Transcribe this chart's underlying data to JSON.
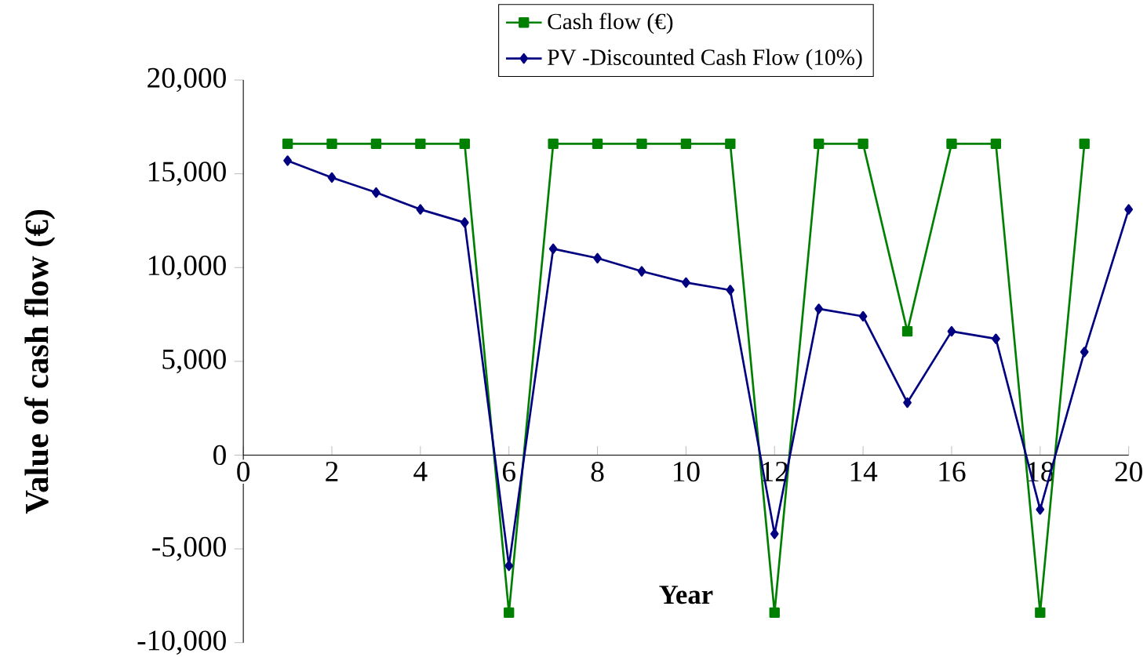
{
  "chart_data": {
    "type": "line",
    "xlabel": "Year",
    "ylabel": "Value of cash flow (€)",
    "x": [
      1,
      2,
      3,
      4,
      5,
      6,
      7,
      8,
      9,
      10,
      11,
      12,
      13,
      14,
      15,
      16,
      17,
      18,
      19,
      20
    ],
    "series": [
      {
        "name": "Cash flow (€)",
        "color": "#008000",
        "marker": "square",
        "values": [
          16600,
          16600,
          16600,
          16600,
          16600,
          -8400,
          16600,
          16600,
          16600,
          16600,
          16600,
          -8400,
          16600,
          16600,
          6600,
          16600,
          16600,
          -8400,
          16600,
          null
        ]
      },
      {
        "name": "PV -Discounted  Cash Flow (10%)",
        "color": "#000080",
        "marker": "diamond",
        "values": [
          15700,
          14800,
          14000,
          13100,
          12400,
          -5900,
          11000,
          10500,
          9800,
          9200,
          8800,
          -4200,
          7800,
          7400,
          2800,
          6600,
          6200,
          -2900,
          5500,
          13100
        ]
      }
    ],
    "xlim": [
      0,
      20
    ],
    "ylim": [
      -10000,
      20000
    ],
    "xticks": [
      0,
      2,
      4,
      6,
      8,
      10,
      12,
      14,
      16,
      18,
      20
    ],
    "yticks": [
      {
        "value": -10000,
        "label": "-10,000"
      },
      {
        "value": -5000,
        "label": "-5,000"
      },
      {
        "value": 0,
        "label": "0"
      },
      {
        "value": 5000,
        "label": "5,000"
      },
      {
        "value": 10000,
        "label": "10,000"
      },
      {
        "value": 15000,
        "label": "15,000"
      },
      {
        "value": 20000,
        "label": "20,000"
      }
    ],
    "legend": "top",
    "grid": false,
    "line_style": "solid"
  }
}
